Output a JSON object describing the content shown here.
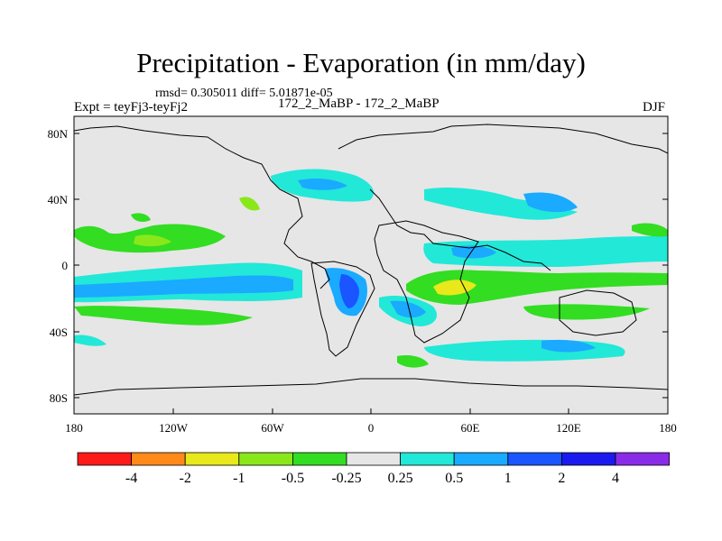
{
  "title": "Precipitation - Evaporation (in mm/day)",
  "stats": "rmsd= 0.305011 diff= 5.01871e-05",
  "expt": "Expt = teyFj3-teyFj2",
  "runs": "172_2_MaBP - 172_2_MaBP",
  "season": "DJF",
  "lat_ticks": [
    "80N",
    "40N",
    "0",
    "40S",
    "80S"
  ],
  "lon_ticks": [
    "180",
    "120W",
    "60W",
    "0",
    "60E",
    "120E",
    "180"
  ],
  "colorbar": {
    "labels": [
      "-4",
      "-2",
      "-1",
      "-0.5",
      "-0.25",
      "0.25",
      "0.5",
      "1",
      "2",
      "4"
    ],
    "colors": [
      "#ff1a1a",
      "#ff8a1a",
      "#e8e81a",
      "#8ae81a",
      "#33dd22",
      "#e6e6e6",
      "#22e8d8",
      "#1aaaff",
      "#1a55ff",
      "#1a1aee",
      "#8a2be8"
    ]
  },
  "colors": {
    "background": "#e6e6e6"
  }
}
